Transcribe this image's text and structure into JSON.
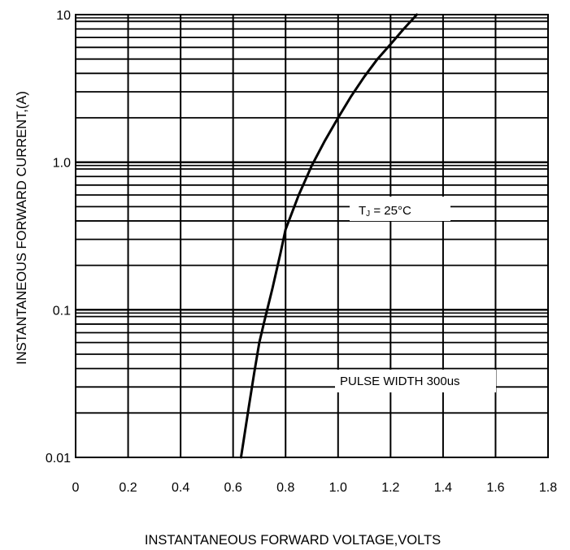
{
  "chart_data": {
    "type": "line",
    "xlabel": "INSTANTANEOUS FORWARD VOLTAGE,VOLTS",
    "ylabel": "INSTANTANEOUS FORWARD CURRENT,(A)",
    "xlim": [
      0,
      1.8
    ],
    "ylim": [
      0.01,
      10
    ],
    "y_scale": "log",
    "x_ticks": [
      "0",
      "0.2",
      "0.4",
      "0.6",
      "0.8",
      "1.0",
      "1.2",
      "1.4",
      "1.6",
      "1.8"
    ],
    "y_ticks": [
      "0.01",
      "0.1",
      "1.0",
      "10"
    ],
    "grid": true,
    "series": [
      {
        "x": [
          0.63,
          0.64,
          0.66,
          0.68,
          0.7,
          0.72,
          0.75,
          0.78,
          0.8,
          0.85,
          0.9,
          0.95,
          1.0,
          1.05,
          1.1,
          1.15,
          1.2,
          1.25,
          1.3
        ],
        "y": [
          0.01,
          0.013,
          0.022,
          0.037,
          0.06,
          0.085,
          0.14,
          0.24,
          0.35,
          0.6,
          0.95,
          1.4,
          2.0,
          2.8,
          3.8,
          5.0,
          6.3,
          8.0,
          10.0
        ]
      }
    ],
    "annotations": [
      {
        "text_main": "T",
        "text_sub": "J",
        "text_rest": " = 25°C"
      },
      {
        "text": "PULSE WIDTH 300us"
      }
    ]
  }
}
